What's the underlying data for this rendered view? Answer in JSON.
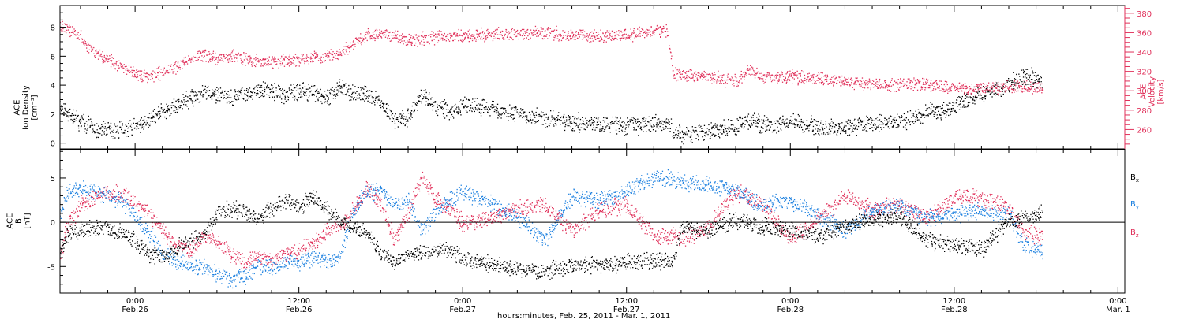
{
  "figure": {
    "x_title": "hours:minutes, Feb. 25, 2011 - Mar. 1, 2011"
  },
  "chart_data": [
    {
      "type": "scatter",
      "panel": "top",
      "x_unit": "hours since Feb. 25, 2011 00:00",
      "xlim": [
        18.5,
        96.5
      ],
      "x_ticks": [
        {
          "x": 24,
          "time": "0:00",
          "date": "Feb.26"
        },
        {
          "x": 36,
          "time": "12:00",
          "date": "Feb.26"
        },
        {
          "x": 48,
          "time": "0:00",
          "date": "Feb.27"
        },
        {
          "x": 60,
          "time": "12:00",
          "date": "Feb.27"
        },
        {
          "x": 72,
          "time": "0:00",
          "date": "Feb.28"
        },
        {
          "x": 84,
          "time": "12:00",
          "date": "Feb.28"
        },
        {
          "x": 96,
          "time": "0:00",
          "date": "Mar. 1"
        }
      ],
      "left_axis": {
        "label": [
          "ACE",
          "Ion Density",
          "[cm⁻³]"
        ],
        "ylim": [
          -0.4,
          9.5
        ],
        "ticks": [
          0,
          2,
          4,
          6,
          8
        ],
        "color": "#000000"
      },
      "right_axis": {
        "label": [
          "ACE",
          "Velocity",
          "[km/s]"
        ],
        "ylim": [
          240,
          388
        ],
        "ticks": [
          260,
          280,
          300,
          320,
          340,
          360,
          380
        ],
        "color": "#e0305a"
      },
      "series": [
        {
          "key": "density",
          "axis": "left",
          "color": "#000000",
          "x": [
            18.5,
            19,
            20,
            21,
            22,
            23,
            24,
            25,
            26,
            27,
            28,
            29,
            30,
            31,
            32,
            33,
            34,
            35,
            36,
            37,
            38,
            39,
            40,
            41,
            42,
            43,
            44,
            45,
            46,
            47,
            48,
            50,
            52,
            54,
            56,
            58,
            60,
            62,
            63,
            63.4,
            64,
            66,
            68,
            69,
            70,
            71,
            72,
            73,
            74,
            76,
            78,
            80,
            81,
            82,
            83,
            84,
            85,
            86,
            87,
            88,
            89,
            90,
            90.5
          ],
          "y": [
            2.6,
            2.1,
            1.5,
            1.0,
            0.9,
            1.0,
            1.1,
            1.6,
            2.2,
            2.6,
            3.2,
            3.5,
            3.3,
            3.1,
            3.4,
            3.7,
            3.6,
            3.3,
            3.6,
            3.4,
            3.1,
            3.8,
            3.5,
            3.3,
            2.8,
            1.6,
            1.8,
            3.3,
            2.6,
            2.2,
            2.6,
            2.4,
            2.1,
            1.7,
            1.5,
            1.3,
            1.2,
            1.3,
            1.5,
            0.7,
            0.6,
            0.8,
            1.2,
            1.6,
            1.3,
            1.4,
            1.5,
            1.3,
            1.2,
            1.1,
            1.4,
            1.6,
            1.7,
            2.2,
            2.3,
            2.6,
            3.1,
            3.4,
            3.7,
            4.1,
            4.6,
            4.5,
            4.2
          ]
        },
        {
          "key": "velocity",
          "axis": "right",
          "color": "#e0305a",
          "x": [
            18.5,
            19,
            20,
            21,
            22,
            23,
            24,
            25,
            26,
            27,
            28,
            29,
            30,
            31,
            32,
            33,
            34,
            35,
            36,
            37,
            38,
            39,
            40,
            41,
            42,
            43,
            44,
            46,
            48,
            50,
            52,
            54,
            56,
            58,
            60,
            62,
            63,
            63.4,
            64,
            66,
            68,
            69,
            70,
            72,
            74,
            76,
            78,
            80,
            82,
            84,
            86,
            88,
            90,
            90.5
          ],
          "y": [
            368,
            365,
            355,
            340,
            333,
            325,
            318,
            315,
            320,
            325,
            333,
            338,
            334,
            336,
            333,
            331,
            330,
            332,
            333,
            335,
            336,
            339,
            350,
            357,
            360,
            356,
            352,
            356,
            357,
            358,
            359,
            361,
            358,
            357,
            358,
            362,
            362,
            318,
            317,
            315,
            310,
            323,
            313,
            315,
            313,
            310,
            307,
            307,
            307,
            303,
            303,
            305,
            304,
            303
          ]
        }
      ]
    },
    {
      "type": "scatter",
      "panel": "bottom",
      "x_unit": "hours since Feb. 25, 2011 00:00",
      "xlim": [
        18.5,
        96.5
      ],
      "y_axis": {
        "label": [
          "ACE",
          "B",
          "[nT]"
        ],
        "ylim": [
          -8.0,
          8.2
        ],
        "ticks": [
          -5,
          0,
          5
        ]
      },
      "series": [
        {
          "key": "bx",
          "name": "Bx",
          "color": "#000000",
          "x": [
            18.5,
            19,
            20,
            21,
            22,
            23,
            24,
            25,
            26,
            27,
            28,
            29,
            30,
            31,
            32,
            33,
            34,
            35,
            36,
            37,
            38,
            39,
            40,
            41,
            42,
            43,
            44,
            45,
            46,
            47,
            48,
            50,
            52,
            54,
            56,
            58,
            60,
            62,
            63.4,
            64,
            66,
            68,
            70,
            72,
            74,
            76,
            78,
            80,
            82,
            84,
            86,
            88,
            90,
            90.5
          ],
          "y": [
            -3,
            -1.5,
            -0.8,
            -0.5,
            -0.6,
            -1.2,
            -2.0,
            -3.5,
            -3.8,
            -3.0,
            -2.0,
            -1.5,
            1.0,
            1.6,
            1.2,
            0.5,
            1.5,
            2.5,
            1.8,
            3.0,
            1.5,
            0.2,
            -0.5,
            -1.0,
            -3.5,
            -4.5,
            -3.5,
            -3.5,
            -3.0,
            -3.2,
            -4.0,
            -4.6,
            -5.2,
            -5.5,
            -4.9,
            -4.8,
            -4.5,
            -4.2,
            -4.5,
            -0.5,
            -1.0,
            0.3,
            -0.5,
            -1.0,
            -1.5,
            -0.5,
            0.3,
            0.8,
            -2.0,
            -2.5,
            -3.0,
            0.0,
            0.8,
            1.2
          ]
        },
        {
          "key": "by",
          "name": "By",
          "color": "#1f82e0",
          "x": [
            18.5,
            19,
            20,
            21,
            22,
            23,
            24,
            25,
            26,
            27,
            28,
            29,
            30,
            31,
            32,
            33,
            34,
            35,
            36,
            37,
            38,
            39,
            40,
            41,
            42,
            43,
            44,
            45,
            46,
            47,
            48,
            50,
            52,
            54,
            56,
            58,
            60,
            62,
            63.4,
            64,
            66,
            68,
            70,
            72,
            74,
            76,
            78,
            80,
            82,
            84,
            86,
            88,
            89,
            90,
            90.5
          ],
          "y": [
            0.5,
            3.5,
            3.8,
            3.5,
            3.0,
            2.5,
            0.5,
            -1.0,
            -3.5,
            -4.5,
            -4.8,
            -5.0,
            -6.0,
            -6.5,
            -6.0,
            -5.0,
            -5.0,
            -4.5,
            -4.5,
            -4.0,
            -4.3,
            -4.0,
            1.5,
            3.5,
            3.6,
            2.0,
            2.5,
            -1.0,
            1.5,
            2.5,
            3.5,
            2.2,
            0.5,
            -2.0,
            3.0,
            2.5,
            3.5,
            5.0,
            4.8,
            4.5,
            4.2,
            3.5,
            2.0,
            2.5,
            1.0,
            -1.0,
            1.5,
            1.8,
            0.5,
            1.0,
            1.5,
            1.0,
            -2.5,
            -3.0,
            -3.5
          ]
        },
        {
          "key": "bz",
          "name": "Bz",
          "color": "#e0305a",
          "x": [
            18.5,
            19,
            20,
            21,
            22,
            23,
            24,
            25,
            26,
            27,
            28,
            29,
            30,
            31,
            32,
            33,
            34,
            35,
            36,
            37,
            38,
            39,
            40,
            41,
            42,
            43,
            44,
            45,
            46,
            47,
            48,
            50,
            52,
            54,
            56,
            58,
            60,
            62,
            63.4,
            64,
            66,
            68,
            70,
            72,
            74,
            76,
            78,
            80,
            82,
            84,
            86,
            88,
            89,
            90,
            90.5
          ],
          "y": [
            -3.5,
            -0.5,
            2.0,
            2.8,
            3.5,
            3.2,
            2.5,
            1.0,
            -1.0,
            -2.5,
            -3.0,
            -1.5,
            -2.0,
            -3.5,
            -4.5,
            -4.0,
            -4.2,
            -3.5,
            -3.0,
            -2.5,
            -1.0,
            -0.5,
            1.5,
            4.0,
            2.0,
            -2.0,
            1.0,
            5.5,
            2.5,
            1.5,
            0.0,
            0.5,
            1.5,
            2.0,
            -1.0,
            1.5,
            2.0,
            -1.5,
            -1.5,
            -2.0,
            -0.5,
            3.5,
            2.0,
            -2.0,
            0.5,
            3.0,
            1.5,
            2.0,
            0.5,
            3.0,
            2.8,
            1.5,
            -1.0,
            -1.5,
            -1.8
          ]
        }
      ],
      "legend": [
        {
          "main": "B",
          "sub": "x",
          "color": "#000000"
        },
        {
          "main": "B",
          "sub": "y",
          "color": "#1f82e0"
        },
        {
          "main": "B",
          "sub": "z",
          "color": "#e0305a"
        }
      ]
    }
  ]
}
